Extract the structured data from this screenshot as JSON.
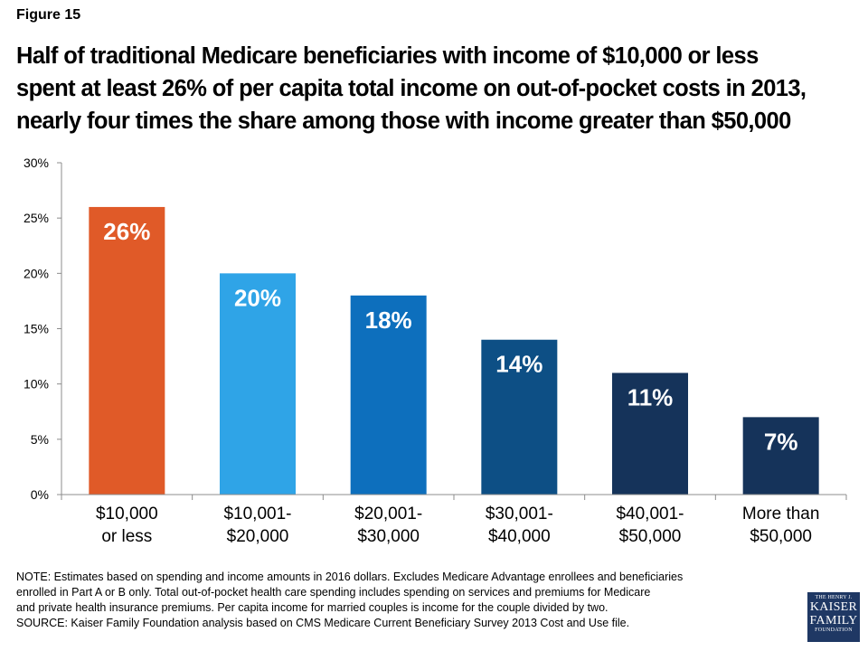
{
  "figure_label": "Figure 15",
  "title_lines": [
    "Half of traditional Medicare beneficiaries with income of $10,000 or less",
    "spent at least 26% of per capita total income on out-of-pocket costs in 2013,",
    "nearly four times the share among those with income greater than $50,000"
  ],
  "chart_data": {
    "type": "bar",
    "categories": [
      [
        "$10,000",
        "or less"
      ],
      [
        "$10,001-",
        "$20,000"
      ],
      [
        "$20,001-",
        "$30,000"
      ],
      [
        "$30,001-",
        "$40,000"
      ],
      [
        "$40,001-",
        "$50,000"
      ],
      [
        "More than",
        "$50,000"
      ]
    ],
    "values": [
      26,
      20,
      18,
      14,
      11,
      7
    ],
    "data_labels": [
      "26%",
      "20%",
      "18%",
      "14%",
      "11%",
      "7%"
    ],
    "colors": [
      "#e05a28",
      "#2fa4e7",
      "#0d6fbd",
      "#0d4f85",
      "#15335a",
      "#15335a"
    ],
    "ylim": [
      0,
      30
    ],
    "yticks": [
      0,
      5,
      10,
      15,
      20,
      25,
      30
    ],
    "ytick_labels": [
      "0%",
      "5%",
      "10%",
      "15%",
      "20%",
      "25%",
      "30%"
    ],
    "grid": false,
    "legend": "none"
  },
  "notes": [
    "NOTE: Estimates based on spending and income amounts in 2016 dollars. Excludes Medicare Advantage enrollees and beneficiaries",
    "enrolled in Part A or B only. Total out-of-pocket health care spending includes spending on services and premiums for Medicare",
    "and private health insurance premiums. Per capita income for married couples is income for the couple divided by two.",
    "SOURCE: Kaiser Family Foundation analysis based on CMS Medicare Current Beneficiary Survey 2013 Cost and Use file."
  ],
  "logo": {
    "line1": "THE HENRY J.",
    "line2": "KAISER",
    "line3": "FAMILY",
    "line4": "FOUNDATION"
  }
}
